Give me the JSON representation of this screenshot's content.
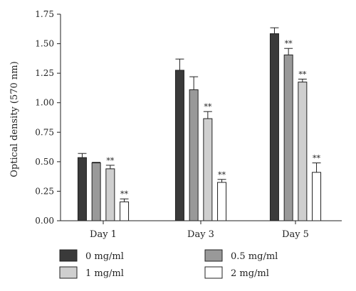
{
  "chart_data": {
    "type": "bar",
    "title": "",
    "xlabel": "",
    "ylabel": "Optical density (570 nm)",
    "ylim": [
      0,
      1.75
    ],
    "yticks": [
      "0.00",
      "0.25",
      "0.50",
      "0.75",
      "1.00",
      "1.25",
      "1.50",
      "1.75"
    ],
    "categories": [
      "Day 1",
      "Day 3",
      "Day 5"
    ],
    "grid": false,
    "legend_position": "bottom",
    "series": [
      {
        "name": "0 mg/ml",
        "color": "#3a3a3a",
        "values": [
          0.535,
          1.275,
          1.585
        ],
        "errors": [
          0.035,
          0.095,
          0.05
        ],
        "marks": [
          "",
          "",
          ""
        ]
      },
      {
        "name": "0.5 mg/ml",
        "color": "#999999",
        "values": [
          0.49,
          1.11,
          1.405
        ],
        "errors": [
          0.005,
          0.11,
          0.055
        ],
        "marks": [
          "",
          "",
          "**"
        ]
      },
      {
        "name": "1 mg/ml",
        "color": "#cfcfcf",
        "values": [
          0.44,
          0.865,
          1.175
        ],
        "errors": [
          0.03,
          0.06,
          0.025
        ],
        "marks": [
          "**",
          "**",
          "**"
        ]
      },
      {
        "name": "2 mg/ml",
        "color": "#ffffff",
        "values": [
          0.16,
          0.325,
          0.41
        ],
        "errors": [
          0.025,
          0.025,
          0.08
        ],
        "marks": [
          "**",
          "**",
          "**"
        ]
      }
    ]
  }
}
